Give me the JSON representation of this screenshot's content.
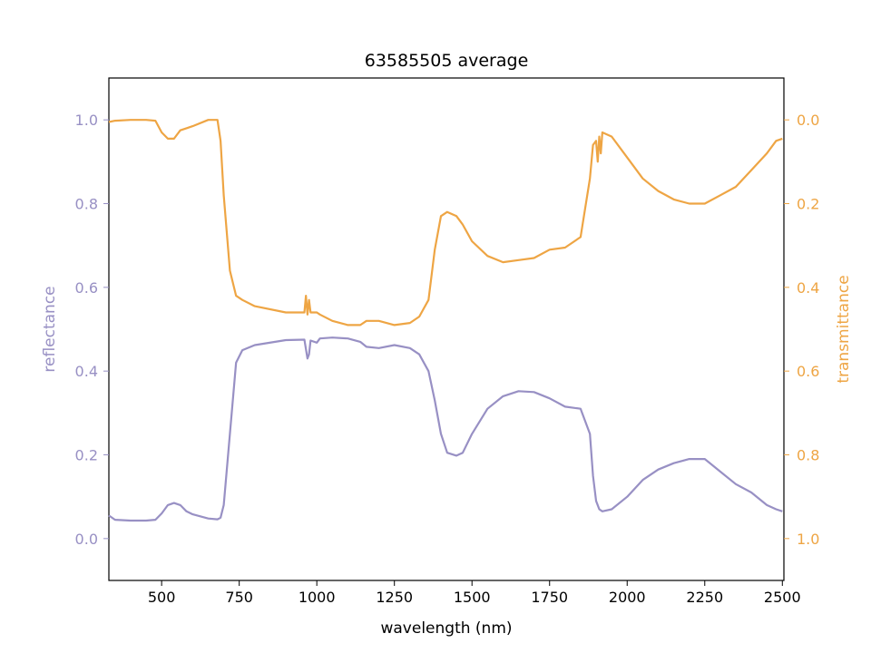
{
  "chart_data": {
    "type": "line",
    "title": "63585505 average",
    "xlabel": "wavelength (nm)",
    "ylabel_left": "reflectance",
    "ylabel_right": "transmittance",
    "xlim": [
      330,
      2505
    ],
    "ylim_left": [
      -0.1,
      1.1
    ],
    "ylim_right_inverted": [
      1.1,
      -0.1
    ],
    "x_ticks": [
      500,
      750,
      1000,
      1250,
      1500,
      1750,
      2000,
      2250,
      2500
    ],
    "x_tick_labels": [
      "500",
      "750",
      "1000",
      "1250",
      "1500",
      "1750",
      "2000",
      "2250",
      "2500"
    ],
    "y_left_ticks": [
      0.0,
      0.2,
      0.4,
      0.6,
      0.8,
      1.0
    ],
    "y_left_tick_labels": [
      "0.0",
      "0.2",
      "0.4",
      "0.6",
      "0.8",
      "1.0"
    ],
    "y_right_ticks": [
      0.0,
      0.2,
      0.4,
      0.6,
      0.8,
      1.0
    ],
    "y_right_tick_labels": [
      "0.0",
      "0.2",
      "0.4",
      "0.6",
      "0.8",
      "1.0"
    ],
    "grid": false,
    "series": [
      {
        "name": "reflectance",
        "axis": "left",
        "color": "#9890c4",
        "x": [
          330,
          350,
          400,
          450,
          480,
          500,
          520,
          540,
          560,
          580,
          600,
          650,
          680,
          690,
          700,
          720,
          740,
          760,
          800,
          900,
          960,
          970,
          975,
          980,
          1000,
          1010,
          1050,
          1100,
          1140,
          1160,
          1200,
          1250,
          1300,
          1330,
          1360,
          1380,
          1400,
          1420,
          1450,
          1470,
          1500,
          1550,
          1600,
          1650,
          1700,
          1750,
          1800,
          1850,
          1880,
          1890,
          1900,
          1910,
          1920,
          1950,
          2000,
          2050,
          2100,
          2150,
          2200,
          2250,
          2300,
          2350,
          2400,
          2450,
          2480,
          2500
        ],
        "y": [
          0.055,
          0.045,
          0.043,
          0.043,
          0.045,
          0.06,
          0.08,
          0.085,
          0.08,
          0.065,
          0.058,
          0.048,
          0.046,
          0.05,
          0.08,
          0.25,
          0.42,
          0.45,
          0.462,
          0.474,
          0.475,
          0.43,
          0.44,
          0.473,
          0.468,
          0.478,
          0.48,
          0.478,
          0.47,
          0.458,
          0.455,
          0.462,
          0.455,
          0.44,
          0.4,
          0.33,
          0.25,
          0.205,
          0.198,
          0.205,
          0.25,
          0.31,
          0.34,
          0.352,
          0.35,
          0.335,
          0.315,
          0.31,
          0.25,
          0.15,
          0.09,
          0.07,
          0.065,
          0.07,
          0.1,
          0.14,
          0.165,
          0.18,
          0.19,
          0.19,
          0.16,
          0.13,
          0.11,
          0.08,
          0.07,
          0.065
        ]
      },
      {
        "name": "transmittance",
        "axis": "right",
        "color": "#eea544",
        "x": [
          330,
          350,
          400,
          450,
          480,
          500,
          520,
          540,
          560,
          580,
          600,
          650,
          680,
          690,
          700,
          720,
          740,
          760,
          800,
          900,
          960,
          965,
          970,
          975,
          980,
          1000,
          1010,
          1050,
          1100,
          1140,
          1160,
          1200,
          1250,
          1300,
          1330,
          1360,
          1380,
          1400,
          1420,
          1450,
          1470,
          1500,
          1550,
          1600,
          1650,
          1700,
          1750,
          1800,
          1850,
          1880,
          1890,
          1900,
          1905,
          1910,
          1915,
          1920,
          1950,
          2000,
          2050,
          2100,
          2150,
          2200,
          2250,
          2300,
          2350,
          2400,
          2450,
          2480,
          2500
        ],
        "y": [
          0.005,
          0.002,
          0.0,
          0.0,
          0.002,
          0.03,
          0.045,
          0.045,
          0.025,
          0.02,
          0.015,
          0.0,
          0.0,
          0.05,
          0.18,
          0.36,
          0.42,
          0.43,
          0.445,
          0.46,
          0.46,
          0.42,
          0.465,
          0.43,
          0.46,
          0.46,
          0.465,
          0.48,
          0.49,
          0.49,
          0.48,
          0.48,
          0.49,
          0.485,
          0.47,
          0.43,
          0.31,
          0.23,
          0.22,
          0.23,
          0.25,
          0.29,
          0.325,
          0.34,
          0.335,
          0.33,
          0.31,
          0.305,
          0.28,
          0.14,
          0.06,
          0.05,
          0.1,
          0.04,
          0.08,
          0.03,
          0.04,
          0.09,
          0.14,
          0.17,
          0.19,
          0.2,
          0.2,
          0.18,
          0.16,
          0.12,
          0.08,
          0.05,
          0.045
        ]
      }
    ]
  }
}
